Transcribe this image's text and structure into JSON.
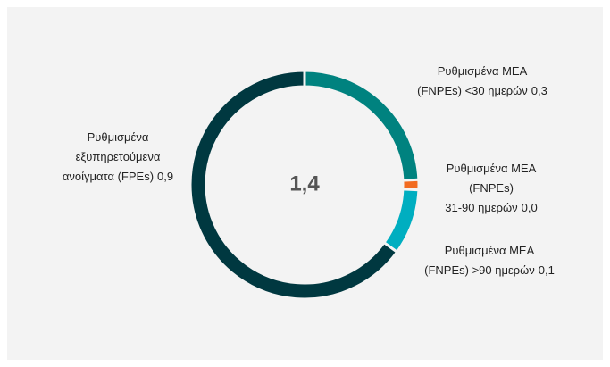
{
  "chart_data": {
    "type": "donut",
    "categories": [
      [
        "Ρυθμισμένα ΜΕΑ",
        "(FNPEs) <30 ημερών"
      ],
      [
        "Ρυθμισμένα ΜΕΑ",
        "(FNPEs)",
        "31-90 ημερών"
      ],
      [
        "Ρυθμισμένα ΜΕΑ",
        "(FNPEs) >90 ημερών"
      ],
      [
        "Ρυθμισμένα",
        "εξυπηρετούμενα",
        "ανοίγματα (FPEs)"
      ]
    ],
    "values": [
      0.34,
      0.02,
      0.13,
      0.91
    ],
    "value_labels": [
      "0,3",
      "0,0",
      "0,1",
      "0,9"
    ],
    "colors": [
      "#00827f",
      "#f26b21",
      "#00aec0",
      "#003840"
    ],
    "total": 1.4,
    "total_label": "1,4"
  }
}
